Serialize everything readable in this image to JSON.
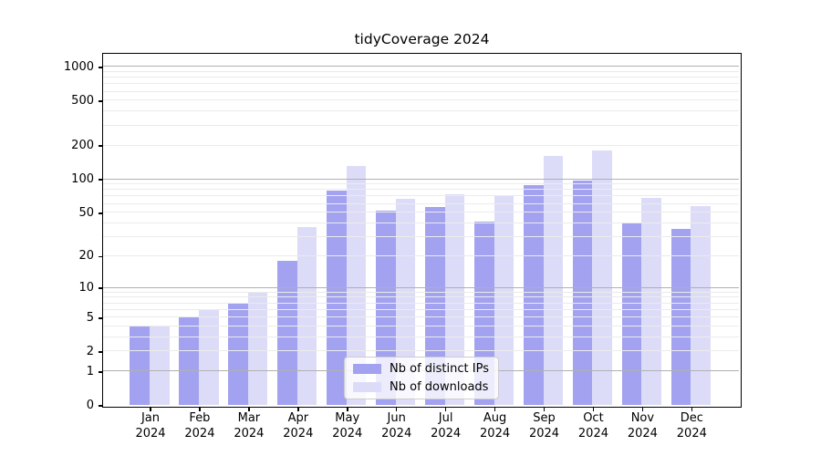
{
  "figure": {
    "background": "#ffffff"
  },
  "chart_data": {
    "type": "bar",
    "title": "tidyCoverage 2024",
    "months": [
      "Jan",
      "Feb",
      "Mar",
      "Apr",
      "May",
      "Jun",
      "Jul",
      "Aug",
      "Sep",
      "Oct",
      "Nov",
      "Dec"
    ],
    "x_tick_year": "2024",
    "categories": [
      "Jan 2024",
      "Feb 2024",
      "Mar 2024",
      "Apr 2024",
      "May 2024",
      "Jun 2024",
      "Jul 2024",
      "Aug 2024",
      "Sep 2024",
      "Oct 2024",
      "Nov 2024",
      "Dec 2024"
    ],
    "series": [
      {
        "name": "Nb of distinct IPs",
        "color": "#a2a2f0",
        "values": [
          4,
          5,
          7,
          18,
          79,
          52,
          56,
          41,
          88,
          96,
          40,
          35
        ]
      },
      {
        "name": "Nb of downloads",
        "color": "#dcdcf8",
        "values": [
          4,
          6,
          9,
          37,
          130,
          66,
          72,
          70,
          160,
          180,
          67,
          57
        ]
      }
    ],
    "yscale": "log1p",
    "yticks": [
      0,
      1,
      2,
      5,
      10,
      20,
      50,
      100,
      200,
      500,
      1000
    ],
    "ylim": [
      0,
      1290
    ],
    "grid": {
      "enabled": true,
      "major_at": [
        1,
        10,
        100,
        1000
      ],
      "major_color": "#b0b0b0",
      "minor_color": "#ebebeb",
      "drawn_over_bars": true
    },
    "legend": {
      "position": "lower center",
      "items": [
        "Nb of distinct IPs",
        "Nb of downloads"
      ],
      "border_color": "#cccccc"
    },
    "spine_color": "#000000",
    "text_color": "#000000"
  }
}
